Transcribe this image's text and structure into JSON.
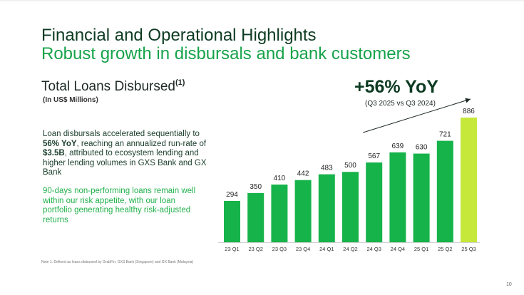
{
  "slide": {
    "title_line1": "Financial and Operational Highlights",
    "title_line2": "Robust growth in disbursals and bank customers",
    "page_number": "10"
  },
  "section": {
    "title": "Total Loans Disbursed",
    "superscript": "(1)",
    "subtitle": "(In US$ Millions)"
  },
  "commentary": {
    "para1_a": "Loan disbursals accelerated sequentially to ",
    "para1_b": "56% YoY",
    "para1_c": ", reaching an annualized run-rate of ",
    "para1_d": "$3.5B",
    "para1_e": ", attributed to ecosystem lending and higher lending volumes in GXS Bank and GX Bank",
    "para2": "90-days non-performing loans remain well within our risk appetite, with our loan portfolio generating healthy risk-adjusted returns"
  },
  "callout": {
    "headline": "+56% YoY",
    "subtitle": "(Q3 2025 vs Q3 2024)"
  },
  "footnote": "Note 1. Defined as loans disbursed by GrabFin, GXS Bank (Singapore) and GX Bank (Malaysia)",
  "colors": {
    "bar": "#16b34a",
    "bar_highlight": "#c6e83a",
    "title_dark": "#0d3b22",
    "title_green": "#16a34a"
  },
  "chart_data": {
    "type": "bar",
    "title": "Total Loans Disbursed",
    "ylabel": "US$ Millions",
    "xlabel": "",
    "categories": [
      "23 Q1",
      "23 Q2",
      "23 Q3",
      "23 Q4",
      "24 Q1",
      "24 Q2",
      "24 Q3",
      "24 Q4",
      "25 Q1",
      "25 Q2",
      "25 Q3"
    ],
    "values": [
      294,
      350,
      410,
      442,
      483,
      500,
      567,
      639,
      630,
      721,
      886
    ],
    "highlight_index": 10,
    "ylim": [
      0,
      886
    ],
    "grid": false,
    "annotation": "+56% YoY trend arrow from 24 Q3 to 25 Q3"
  }
}
